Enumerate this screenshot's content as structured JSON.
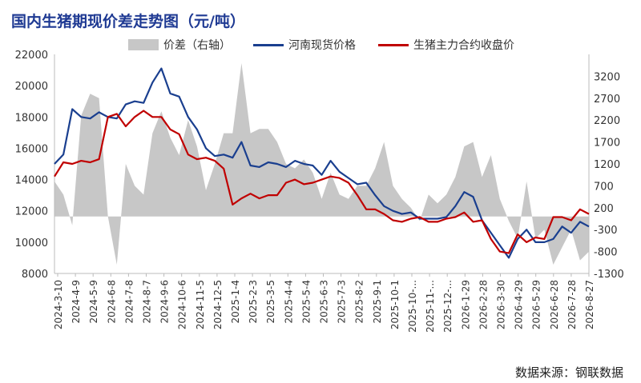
{
  "title": "国内生猪期现价差走势图（元/吨）",
  "source": "数据来源：钢联数据",
  "legend": [
    {
      "label": "价差（右轴）",
      "kind": "area",
      "color": "#c7c7c7"
    },
    {
      "label": "河南现货价格",
      "kind": "line",
      "color": "#1a3f8f"
    },
    {
      "label": "生猪主力合约收盘价",
      "kind": "line",
      "color": "#c00000"
    }
  ],
  "chart_data": {
    "type": "line",
    "title": "国内生猪期现价差走势图（元/吨）",
    "left_axis": {
      "ylim": [
        8000,
        22000
      ],
      "ticks": [
        8000,
        10000,
        12000,
        14000,
        16000,
        18000,
        20000,
        22000
      ]
    },
    "right_axis": {
      "ylim": [
        -1300,
        3700
      ],
      "ticks": [
        -1300,
        -800,
        -300,
        200,
        700,
        1200,
        1700,
        2200,
        2700,
        3200
      ]
    },
    "x_ticks": [
      "2024-3-10",
      "2024-4-9",
      "2024-5-9",
      "2024-6-8",
      "2024-7-8",
      "2024-8-7",
      "2024-9-6",
      "2024-10-6",
      "2024-11-5",
      "2024-12-5",
      "2025-1-4",
      "2025-2-3",
      "2025-3-5",
      "2025-4-4",
      "2025-5-4",
      "2025-6-3",
      "2025-7-3",
      "2025-8-2",
      "2025-9-1",
      "2025-10-1",
      "2025-10-...",
      "2025-11-...",
      "2025-12-...",
      "2026-1-29",
      "2026-2-28",
      "2026-3-30",
      "2026-4-29",
      "2026-5-29",
      "2026-6-28",
      "2026-7-28",
      "2026-8-27"
    ],
    "series": [
      {
        "name": "河南现货价格",
        "axis": "left",
        "color": "#1a3f8f",
        "values": [
          15000,
          15600,
          18500,
          18000,
          17900,
          18300,
          18000,
          17900,
          18800,
          19000,
          18900,
          20200,
          21100,
          19500,
          19300,
          18000,
          17200,
          16000,
          15500,
          15600,
          15400,
          16400,
          14900,
          14800,
          15100,
          15000,
          14800,
          15200,
          15000,
          14900,
          14300,
          15200,
          14500,
          14100,
          13700,
          13800,
          13000,
          12300,
          12000,
          11800,
          11900,
          11500,
          11500,
          11500,
          11600,
          12300,
          13200,
          12900,
          11400,
          10600,
          9800,
          9000,
          10200,
          10800,
          10000,
          10000,
          10200,
          11000,
          10600,
          11300,
          11000
        ]
      },
      {
        "name": "生猪主力合约收盘价",
        "axis": "left",
        "color": "#c00000",
        "values": [
          14200,
          15100,
          15000,
          15200,
          15100,
          15300,
          18000,
          18200,
          17400,
          18000,
          18400,
          18000,
          18000,
          17200,
          16900,
          15600,
          15300,
          15400,
          15200,
          14700,
          12400,
          12800,
          13100,
          12800,
          13000,
          13000,
          13800,
          14000,
          13700,
          13800,
          14000,
          14200,
          14100,
          13800,
          13000,
          12100,
          12100,
          11800,
          11400,
          11300,
          11500,
          11600,
          11300,
          11300,
          11500,
          11600,
          11900,
          11300,
          11400,
          10200,
          9400,
          9300,
          10500,
          10000,
          10300,
          10200,
          11600,
          11600,
          11400,
          12100,
          11800
        ]
      },
      {
        "name": "价差（右轴）",
        "axis": "right",
        "color": "#c7c7c7",
        "kind": "area",
        "values": [
          800,
          500,
          -200,
          2300,
          2800,
          2700,
          0,
          -1100,
          1200,
          700,
          500,
          1900,
          2400,
          1800,
          1400,
          2200,
          1600,
          600,
          1200,
          1900,
          1900,
          3500,
          1900,
          2000,
          2000,
          1700,
          1200,
          1100,
          1300,
          1000,
          400,
          1000,
          500,
          400,
          700,
          700,
          1100,
          1700,
          700,
          400,
          200,
          -100,
          500,
          300,
          500,
          900,
          1600,
          1700,
          900,
          1400,
          400,
          -100,
          -500,
          800,
          -500,
          -300,
          -1100,
          -700,
          -300,
          -1000,
          -800
        ]
      }
    ]
  }
}
